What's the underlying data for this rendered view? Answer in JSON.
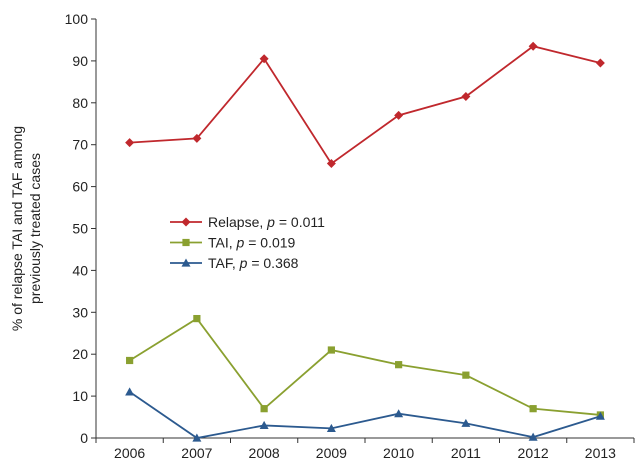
{
  "chart_data": {
    "type": "line",
    "title": "",
    "xlabel": "",
    "ylabel_lines": [
      "% of relapse TAI and TAF among",
      "previously treated cases"
    ],
    "categories": [
      "2006",
      "2007",
      "2008",
      "2009",
      "2010",
      "2011",
      "2012",
      "2013"
    ],
    "ylim": [
      0,
      100
    ],
    "yticks": [
      0,
      10,
      20,
      30,
      40,
      50,
      60,
      70,
      80,
      90,
      100
    ],
    "grid": false,
    "legend_position": "center-left",
    "series": [
      {
        "name": "Relapse",
        "p_label": "p",
        "p_value": "= 0.011",
        "color": "#c0282d",
        "marker": "diamond",
        "values": [
          70.5,
          71.5,
          90.5,
          65.5,
          77,
          81.5,
          93.5,
          89.5
        ]
      },
      {
        "name": "TAI",
        "p_label": "p",
        "p_value": "=  0.019",
        "color": "#8aa030",
        "marker": "square",
        "values": [
          18.5,
          28.5,
          7,
          21,
          17.5,
          15,
          7,
          5.5
        ]
      },
      {
        "name": "TAF",
        "p_label": "p",
        "p_value": "= 0.368",
        "color": "#2c5a8f",
        "marker": "triangle",
        "values": [
          11,
          0,
          3,
          2.3,
          5.8,
          3.5,
          0.2,
          5.2
        ]
      }
    ]
  }
}
